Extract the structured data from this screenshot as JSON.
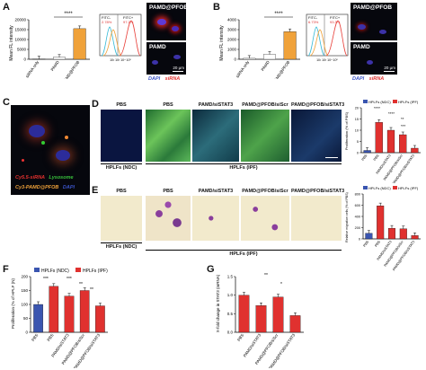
{
  "panels": {
    "A": {
      "label": "A",
      "chart": {
        "type": "bar",
        "ylabel": "Mean FL intensity",
        "yticks": [
          "0",
          "5000",
          "10000",
          "15000",
          "20000"
        ],
        "ylim": [
          0,
          20000
        ],
        "categories": [
          "siRNA only",
          "PAMD",
          "PAMD@PFOB"
        ],
        "values": [
          200,
          1000,
          15500
        ],
        "significance": "****"
      },
      "flow": {
        "labels": [
          "FITC-",
          "FITC+"
        ],
        "percents": [
          "2.78%",
          "97.2%"
        ]
      },
      "images": [
        "PAMD@PFOB",
        "PAMD"
      ],
      "scale": "20 μm",
      "stain": {
        "dapi": "DAPI",
        "sirna": "siRNA"
      }
    },
    "B": {
      "label": "B",
      "chart": {
        "type": "bar",
        "ylabel": "Mean FL intensity",
        "yticks": [
          "0",
          "1000",
          "2000",
          "3000",
          "4000"
        ],
        "ylim": [
          0,
          4000
        ],
        "categories": [
          "siRNA only",
          "PAMD",
          "PAMD@PFOB"
        ],
        "values": [
          100,
          500,
          2800
        ],
        "significance": "****"
      },
      "flow": {
        "labels": [
          "FITC-",
          "FITC+"
        ],
        "percents": [
          "6.73%",
          "93.3%"
        ]
      },
      "images": [
        "PAMD@PFOB",
        "PAMD"
      ],
      "scale": "20 μm",
      "stain": {
        "dapi": "DAPI",
        "sirna": "siRNA"
      }
    },
    "C": {
      "label": "C",
      "legend": [
        "Cy5.5-siRNA",
        "Lysosome",
        "Cy3-PAMD@PFOB",
        "DAPI"
      ]
    },
    "D": {
      "label": "D",
      "images": [
        "PBS",
        "PBS",
        "PAMD/siSTAT3",
        "PAMD@PFOB/siScr",
        "PAMD@PFOB/siSTAT3"
      ],
      "group_ndc": "HPLFs (NDC)",
      "group_ipf": "HPLFs (IPF)",
      "chart": {
        "type": "bar",
        "legend": [
          "HPLFs (NDC)",
          "HPLFs (IPF)"
        ],
        "ylabel": "Proliferation (% of PBS)",
        "yticks": [
          "0",
          "5",
          "10",
          "15",
          "20"
        ],
        "ylim": [
          0,
          20
        ],
        "categories": [
          "PBS",
          "PBS",
          "PAMD/siSTAT3",
          "PAMD@PFOB/siScr",
          "PAMD@PFOB/siSTAT3"
        ],
        "values": [
          1,
          13.5,
          10,
          8,
          2
        ],
        "sig": [
          "****",
          "****",
          "**",
          "***"
        ]
      }
    },
    "E": {
      "label": "E",
      "images": [
        "PBS",
        "PBS",
        "PAMD/siSTAT3",
        "PAMD@PFOB/siScr",
        "PAMD@PFOB/siSTAT3"
      ],
      "group_ndc": "HPLFs (NDC)",
      "group_ipf": "HPLFs (IPF)",
      "chart": {
        "type": "bar",
        "legend": [
          "HPLFs (NDC)",
          "HPLFs (IPF)"
        ],
        "ylabel": "Relative migration cells (% of PBS)",
        "yticks": [
          "0",
          "200",
          "400",
          "600",
          "800"
        ],
        "ylim": [
          0,
          800
        ],
        "categories": [
          "PBS",
          "PBS",
          "PAMD/siSTAT3",
          "PAMD@PFOB/siScr",
          "PAMD@PFOB/siSTAT3"
        ],
        "values": [
          100,
          590,
          190,
          180,
          60
        ]
      }
    },
    "F": {
      "label": "F",
      "chart": {
        "type": "bar",
        "legend": [
          "HPLFs (NDC)",
          "HPLFs (IPF)"
        ],
        "ylabel": "Proliferation (% of HPLF (N)",
        "yticks": [
          "0",
          "50",
          "100",
          "150",
          "200"
        ],
        "ylim": [
          0,
          200
        ],
        "categories": [
          "PBS",
          "PBS",
          "PAMD/siSTAT3",
          "PAMD@PFOB/siScr",
          "PAMD@PFOB/siSTAT3"
        ],
        "values": [
          100,
          165,
          130,
          150,
          95
        ],
        "sig": [
          "***",
          "***",
          "**",
          "**"
        ]
      }
    },
    "G": {
      "label": "G",
      "chart": {
        "type": "bar",
        "ylabel": "X-fold change in STAT3 (mRNA)",
        "yticks": [
          "0.0",
          "0.5",
          "1.0",
          "1.5"
        ],
        "ylim": [
          0,
          1.5
        ],
        "categories": [
          "PBS",
          "PAMD/siSTAT3",
          "PAMD@PFOB/siScr",
          "PAMD@PFOB/siSTAT3"
        ],
        "values": [
          1.0,
          0.72,
          0.95,
          0.45
        ],
        "sig": [
          "**",
          "*"
        ]
      }
    }
  },
  "colors": {
    "ndc": "#3a55b0",
    "ipf": "#e0312f",
    "flow_red": "#e8403a",
    "flow_cyan": "#37b9d6",
    "flow_orange": "#f0a23a"
  }
}
